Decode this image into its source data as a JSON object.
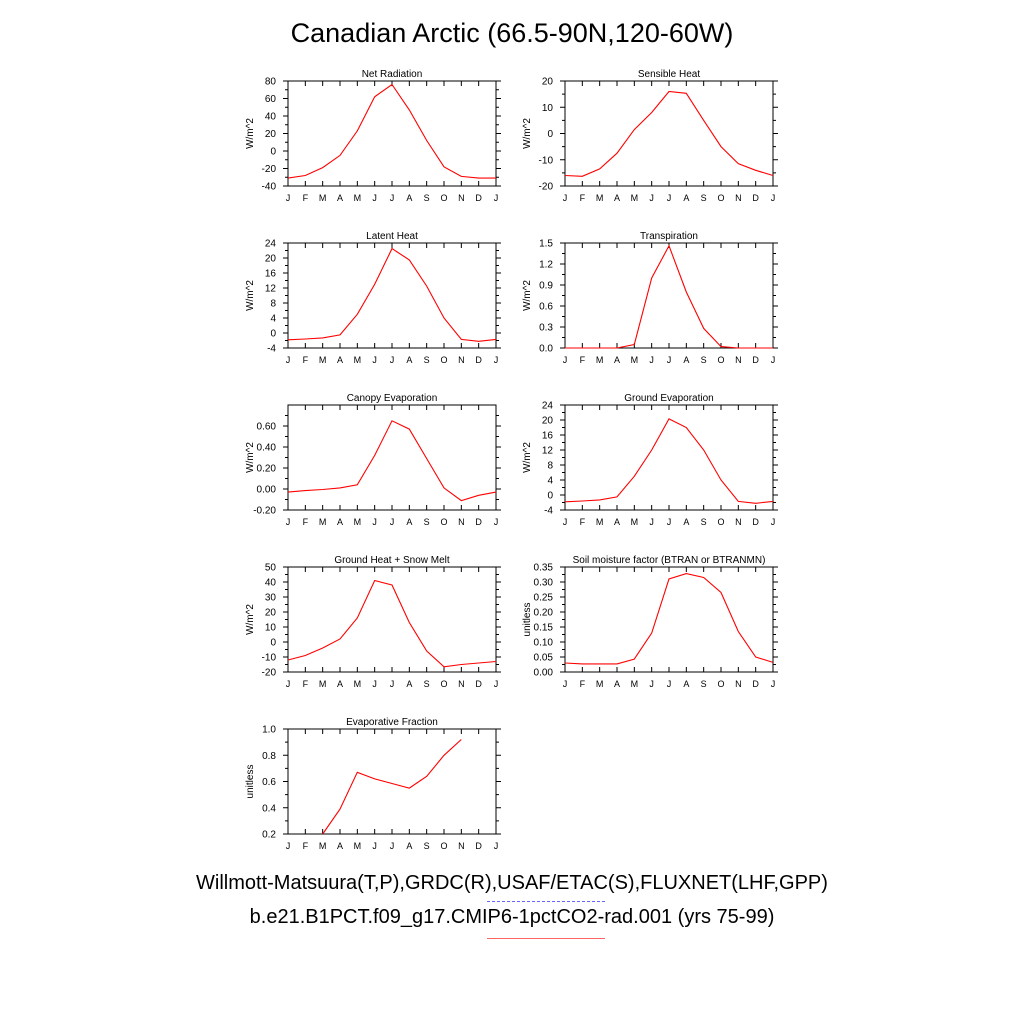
{
  "title": "Canadian Arctic (66.5-90N,120-60W)",
  "legend": {
    "observed": "Willmott-Matsuura(T,P),GRDC(R),USAF/ETAC(S),FLUXNET(LHF,GPP)",
    "model": "b.e21.B1PCT.f09_g17.CMIP6-1pctCO2-rad.001 (yrs 75-99)",
    "observed_color": "#6666ff",
    "model_color": "#ff6666"
  },
  "months": [
    "J",
    "F",
    "M",
    "A",
    "M",
    "J",
    "J",
    "A",
    "S",
    "O",
    "N",
    "D",
    "J"
  ],
  "chart_data": [
    {
      "type": "line",
      "title": "Net Radiation",
      "ylabel": "W/m^2",
      "ylim": [
        -40,
        80
      ],
      "yticks": [
        -40,
        -20,
        0,
        20,
        40,
        60,
        80
      ],
      "yticklabels": [
        "-40",
        "-20",
        "0",
        "20",
        "40",
        "60",
        "80"
      ],
      "series": [
        {
          "values": [
            -31,
            -28,
            -19,
            -5,
            23,
            62,
            76,
            47,
            12,
            -18,
            -29,
            -31,
            -31
          ],
          "color": "#ff0000"
        }
      ]
    },
    {
      "type": "line",
      "title": "Sensible Heat",
      "ylabel": "W/m^2",
      "ylim": [
        -20,
        20
      ],
      "yticks": [
        -20,
        -10,
        0,
        10,
        20
      ],
      "yticklabels": [
        "-20",
        "-10",
        "0",
        "10",
        "20"
      ],
      "series": [
        {
          "values": [
            -16,
            -16.3,
            -13.5,
            -7.5,
            1.5,
            8,
            16,
            15.3,
            5,
            -5,
            -11.5,
            -14,
            -16
          ],
          "color": "#ff0000"
        }
      ]
    },
    {
      "type": "line",
      "title": "Latent Heat",
      "ylabel": "W/m^2",
      "ylim": [
        -4,
        24
      ],
      "yticks": [
        -4,
        0,
        4,
        8,
        12,
        16,
        20,
        24
      ],
      "yticklabels": [
        "-4",
        "0",
        "4",
        "8",
        "12",
        "16",
        "20",
        "24"
      ],
      "series": [
        {
          "values": [
            -1.8,
            -1.6,
            -1.3,
            -0.5,
            5,
            13,
            22.5,
            19.5,
            12.5,
            4,
            -1.7,
            -2.2,
            -1.7
          ],
          "color": "#ff0000"
        }
      ]
    },
    {
      "type": "line",
      "title": "Transpiration",
      "ylabel": "W/m^2",
      "ylim": [
        0,
        1.5
      ],
      "yticks": [
        0,
        0.3,
        0.6,
        0.9,
        1.2,
        1.5
      ],
      "yticklabels": [
        "0.0",
        "0.3",
        "0.6",
        "0.9",
        "1.2",
        "1.5"
      ],
      "series": [
        {
          "values": [
            0,
            0,
            0,
            0,
            0.05,
            1.0,
            1.46,
            0.8,
            0.28,
            0.02,
            0,
            0,
            0
          ],
          "color": "#ff0000"
        }
      ]
    },
    {
      "type": "line",
      "title": "Canopy Evaporation",
      "ylabel": "W/m^2",
      "ylim": [
        -0.2,
        0.8
      ],
      "yticks": [
        -0.2,
        0,
        0.2,
        0.4,
        0.6
      ],
      "yticklabels": [
        "-0.20",
        "0.00",
        "0.20",
        "0.40",
        "0.60"
      ],
      "series": [
        {
          "values": [
            -0.03,
            -0.015,
            -0.005,
            0.01,
            0.04,
            0.32,
            0.65,
            0.57,
            0.29,
            0.01,
            -0.11,
            -0.06,
            -0.03
          ],
          "color": "#ff0000"
        }
      ]
    },
    {
      "type": "line",
      "title": "Ground Evaporation",
      "ylabel": "W/m^2",
      "ylim": [
        -4,
        24
      ],
      "yticks": [
        -4,
        0,
        4,
        8,
        12,
        16,
        20,
        24
      ],
      "yticklabels": [
        "-4",
        "0",
        "4",
        "8",
        "12",
        "16",
        "20",
        "24"
      ],
      "series": [
        {
          "values": [
            -1.8,
            -1.6,
            -1.3,
            -0.5,
            5,
            12,
            20.3,
            18,
            12,
            4,
            -1.7,
            -2.2,
            -1.7
          ],
          "color": "#ff0000"
        }
      ]
    },
    {
      "type": "line",
      "title": "Ground Heat + Snow Melt",
      "ylabel": "W/m^2",
      "ylim": [
        -20,
        50
      ],
      "yticks": [
        -20,
        -10,
        0,
        10,
        20,
        30,
        40,
        50
      ],
      "yticklabels": [
        "-20",
        "-10",
        "0",
        "10",
        "20",
        "30",
        "40",
        "50"
      ],
      "series": [
        {
          "values": [
            -12,
            -9,
            -4,
            2,
            16,
            41,
            38,
            13,
            -6,
            -16.5,
            -15,
            -14,
            -13
          ],
          "color": "#ff0000"
        }
      ]
    },
    {
      "type": "line",
      "title": "Soil moisture factor (BTRAN or BTRANMN)",
      "ylabel": "unitless",
      "ylim": [
        0,
        0.35
      ],
      "yticks": [
        0,
        0.05,
        0.1,
        0.15,
        0.2,
        0.25,
        0.3,
        0.35
      ],
      "yticklabels": [
        "0.00",
        "0.05",
        "0.10",
        "0.15",
        "0.20",
        "0.25",
        "0.30",
        "0.35"
      ],
      "series": [
        {
          "values": [
            0.03,
            0.027,
            0.027,
            0.027,
            0.043,
            0.13,
            0.31,
            0.328,
            0.315,
            0.265,
            0.135,
            0.05,
            0.032
          ],
          "color": "#ff0000"
        }
      ]
    },
    {
      "type": "line",
      "title": "Evaporative Fraction",
      "ylabel": "unitless",
      "ylim": [
        0.2,
        1.0
      ],
      "yticks": [
        0.2,
        0.4,
        0.6,
        0.8,
        1.0
      ],
      "yticklabels": [
        "0.2",
        "0.4",
        "0.6",
        "0.8",
        "1.0"
      ],
      "series": [
        {
          "values": [
            null,
            null,
            0.2,
            0.39,
            0.67,
            0.62,
            0.585,
            0.55,
            0.64,
            0.8,
            0.92,
            null,
            null
          ],
          "color": "#ff0000"
        }
      ]
    }
  ]
}
